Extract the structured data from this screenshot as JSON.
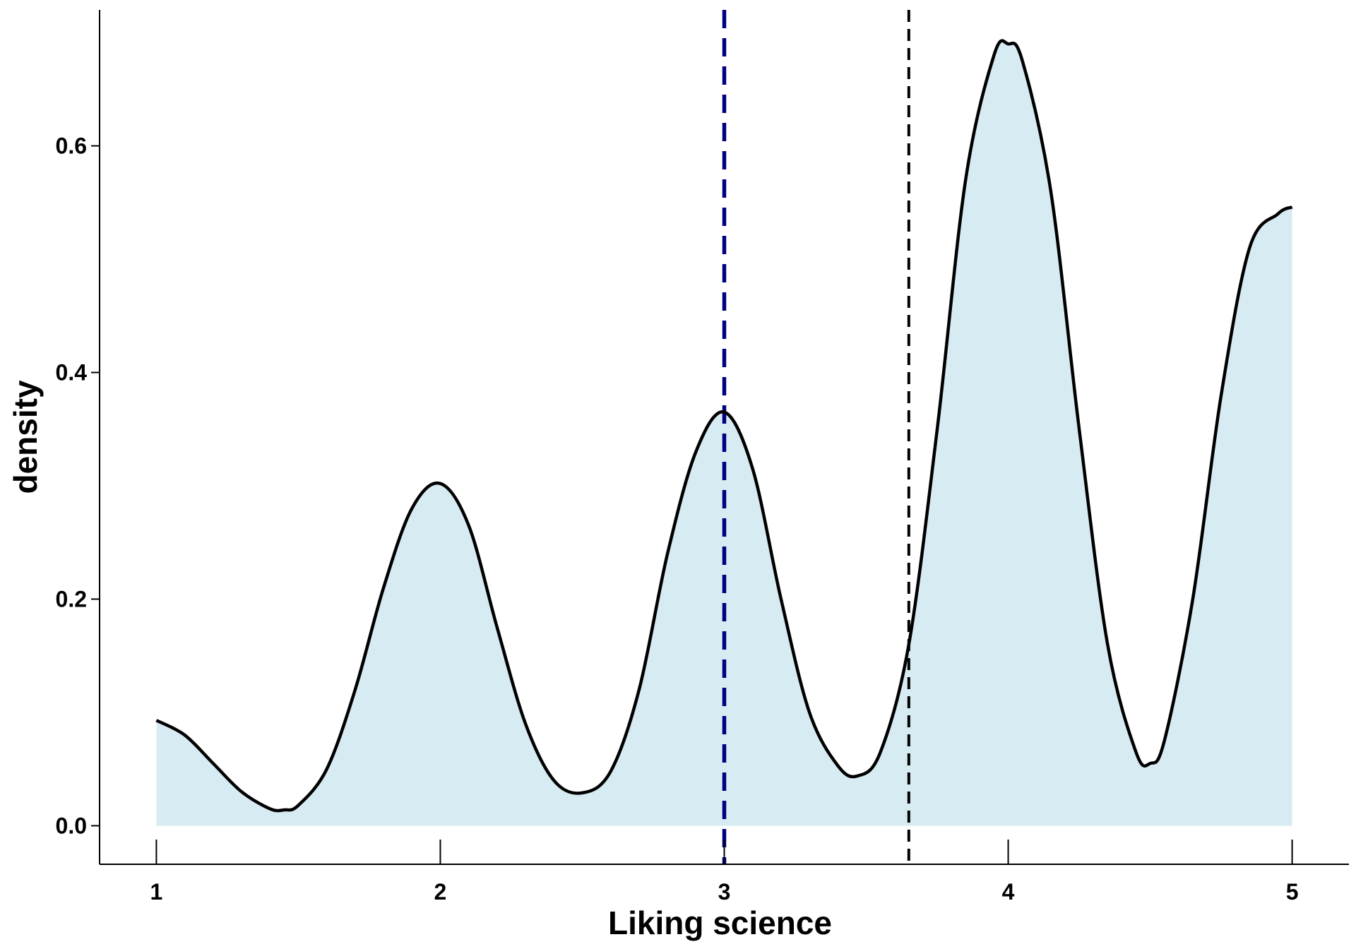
{
  "chart_data": {
    "type": "area",
    "title": "",
    "xlabel": "Liking science",
    "ylabel": "density",
    "xlim": [
      0.8,
      5.2
    ],
    "ylim": [
      -0.034,
      0.72
    ],
    "x_ticks": [
      1,
      2,
      3,
      4,
      5
    ],
    "x_tick_labels": [
      "1",
      "2",
      "3",
      "4",
      "5"
    ],
    "y_ticks": [
      0.0,
      0.2,
      0.4,
      0.6
    ],
    "y_tick_labels": [
      "0.0",
      "0.2",
      "0.4",
      "0.6"
    ],
    "grid": false,
    "legend": "none",
    "series": [
      {
        "x": [
          1.0,
          1.1,
          1.2,
          1.3,
          1.4,
          1.45,
          1.5,
          1.6,
          1.7,
          1.8,
          1.9,
          2.0,
          2.1,
          2.2,
          2.3,
          2.4,
          2.5,
          2.6,
          2.7,
          2.8,
          2.9,
          3.0,
          3.1,
          3.2,
          3.3,
          3.4,
          3.47,
          3.55,
          3.65,
          3.75,
          3.85,
          3.95,
          4.0,
          4.05,
          4.15,
          4.25,
          4.35,
          4.45,
          4.5,
          4.55,
          4.65,
          4.75,
          4.85,
          4.95,
          5.0
        ],
        "y": [
          0.093,
          0.08,
          0.055,
          0.03,
          0.015,
          0.014,
          0.018,
          0.05,
          0.12,
          0.21,
          0.28,
          0.302,
          0.265,
          0.175,
          0.09,
          0.04,
          0.029,
          0.048,
          0.12,
          0.24,
          0.33,
          0.365,
          0.315,
          0.2,
          0.1,
          0.053,
          0.044,
          0.065,
          0.16,
          0.35,
          0.57,
          0.68,
          0.69,
          0.675,
          0.56,
          0.35,
          0.16,
          0.065,
          0.055,
          0.075,
          0.2,
          0.38,
          0.51,
          0.54,
          0.546
        ],
        "fill": "#d7ebf3",
        "line_color": "#000000"
      }
    ],
    "reference_lines": [
      {
        "x": 3.0,
        "color": "#000080",
        "style": "dashed"
      },
      {
        "x": 3.65,
        "color": "#000000",
        "style": "dashed"
      }
    ]
  }
}
